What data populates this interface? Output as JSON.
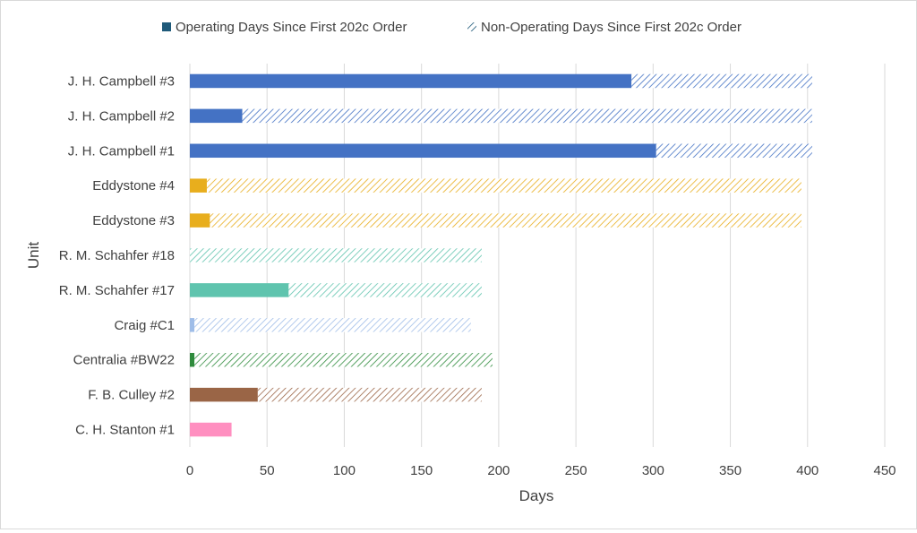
{
  "chart_data": {
    "type": "bar",
    "orientation": "horizontal",
    "stacked": true,
    "xlabel": "Days",
    "ylabel": "Unit",
    "xlim": [
      0,
      450
    ],
    "x_ticks": [
      "0",
      "50",
      "100",
      "150",
      "200",
      "250",
      "300",
      "350",
      "400",
      "450"
    ],
    "grid": "vertical",
    "legend_position": "top",
    "legend": [
      "Operating Days Since First 202c Order",
      "Non-Operating Days Since First 202c Order"
    ],
    "categories": [
      "J. H. Campbell #3",
      "J. H. Campbell #2",
      "J. H. Campbell #1",
      "Eddystone #4",
      "Eddystone #3",
      "R. M. Schahfer #18",
      "R. M. Schahfer #17",
      "Craig #C1",
      "Centralia #BW22",
      "F. B. Culley #2",
      "C. H. Stanton #1"
    ],
    "colors": [
      "#4472c4",
      "#4472c4",
      "#4472c4",
      "#e8ae1d",
      "#e8ae1d",
      "#5fc4ae",
      "#5fc4ae",
      "#9fbde8",
      "#2e8b3c",
      "#9a6546",
      "#ff8fc0"
    ],
    "operating_color_in_legend": "#1f5a7a",
    "series": [
      {
        "name": "Operating Days Since First 202c Order",
        "values": [
          286,
          34,
          302,
          11,
          13,
          0,
          64,
          3,
          3,
          44,
          27
        ]
      },
      {
        "name": "Non-Operating Days Since First 202c Order",
        "values": [
          117,
          369,
          101,
          385,
          383,
          189,
          125,
          179,
          193,
          145,
          0
        ]
      }
    ]
  }
}
